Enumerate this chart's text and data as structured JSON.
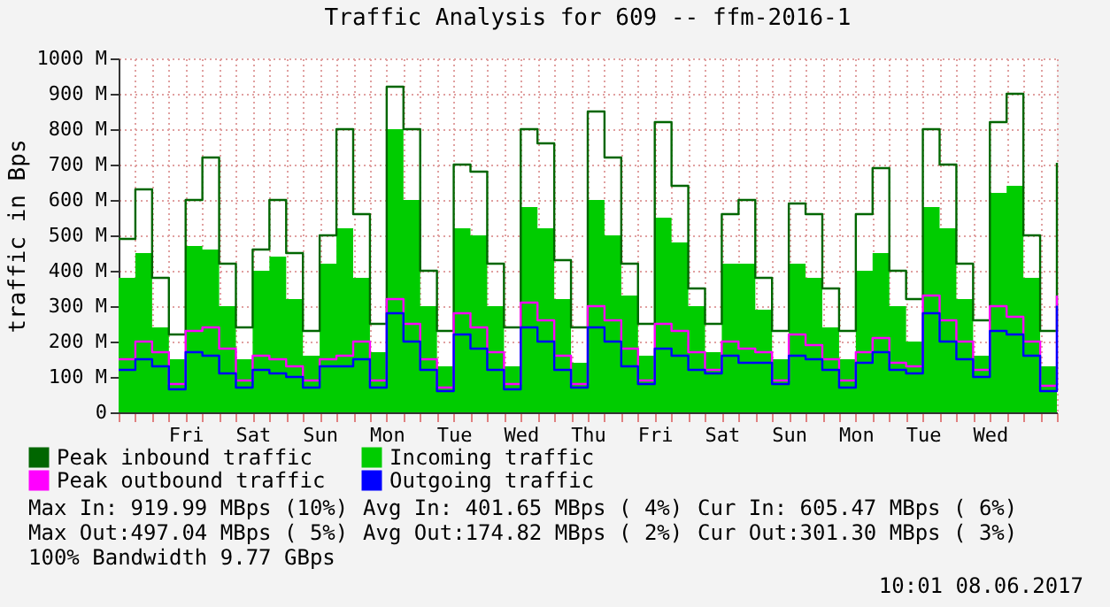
{
  "chart_data": {
    "type": "area",
    "title": "Traffic Analysis for 609 -- ffm-2016-1",
    "ylabel": "traffic in Bps",
    "categories": [
      null,
      null,
      null,
      null,
      "Fri",
      null,
      null,
      null,
      "Sat",
      null,
      null,
      null,
      "Sun",
      null,
      null,
      null,
      "Mon",
      null,
      null,
      null,
      "Tue",
      null,
      null,
      null,
      "Wed",
      null,
      null,
      null,
      "Thu",
      null,
      null,
      null,
      "Fri",
      null,
      null,
      null,
      "Sat",
      null,
      null,
      null,
      "Sun",
      null,
      null,
      null,
      "Mon",
      null,
      null,
      null,
      "Tue",
      null,
      null,
      null,
      "Wed",
      null,
      null,
      null,
      null
    ],
    "series": [
      {
        "name": "Peak inbound traffic",
        "type": "step",
        "color": "#006600",
        "values": [
          490,
          630,
          380,
          220,
          600,
          720,
          420,
          240,
          460,
          600,
          450,
          230,
          500,
          800,
          560,
          250,
          920,
          800,
          400,
          230,
          700,
          680,
          420,
          240,
          800,
          760,
          430,
          240,
          850,
          720,
          420,
          250,
          820,
          640,
          350,
          250,
          560,
          600,
          380,
          230,
          590,
          560,
          350,
          230,
          560,
          690,
          400,
          320,
          800,
          700,
          420,
          260,
          820,
          900,
          500,
          230,
          705
        ]
      },
      {
        "name": "Incoming traffic",
        "color": "#00cc00",
        "values": [
          380,
          450,
          240,
          150,
          470,
          460,
          300,
          150,
          400,
          440,
          320,
          160,
          420,
          520,
          380,
          170,
          800,
          600,
          300,
          130,
          520,
          500,
          300,
          130,
          580,
          520,
          320,
          140,
          600,
          500,
          330,
          160,
          550,
          480,
          300,
          170,
          420,
          420,
          290,
          150,
          420,
          380,
          240,
          150,
          400,
          450,
          300,
          200,
          580,
          520,
          320,
          160,
          620,
          640,
          380,
          130,
          605
        ]
      },
      {
        "name": "Peak outbound traffic",
        "type": "step",
        "color": "#ff00ff",
        "values": [
          150,
          200,
          170,
          80,
          230,
          240,
          180,
          90,
          160,
          150,
          130,
          90,
          150,
          160,
          200,
          90,
          320,
          250,
          150,
          70,
          280,
          240,
          170,
          80,
          310,
          260,
          160,
          80,
          300,
          260,
          180,
          90,
          250,
          230,
          170,
          120,
          200,
          180,
          170,
          90,
          220,
          190,
          150,
          90,
          170,
          210,
          140,
          130,
          330,
          260,
          200,
          120,
          300,
          270,
          200,
          75,
          330
        ]
      },
      {
        "name": "Outgoing traffic",
        "type": "step",
        "color": "#0000ff",
        "values": [
          120,
          150,
          130,
          65,
          170,
          160,
          110,
          70,
          120,
          110,
          100,
          70,
          130,
          130,
          150,
          70,
          280,
          200,
          120,
          60,
          220,
          180,
          120,
          65,
          240,
          200,
          120,
          70,
          240,
          200,
          130,
          80,
          180,
          160,
          120,
          110,
          160,
          140,
          140,
          80,
          160,
          150,
          120,
          70,
          140,
          170,
          120,
          110,
          280,
          200,
          150,
          100,
          230,
          220,
          160,
          60,
          301
        ]
      }
    ],
    "ylim": [
      0,
      1000
    ],
    "yticks": [
      0,
      {
        "value": 100,
        "label": "100 M"
      },
      {
        "value": 200,
        "label": "200 M"
      },
      {
        "value": 300,
        "label": "300 M"
      },
      {
        "value": 400,
        "label": "400 M"
      },
      {
        "value": 500,
        "label": "500 M"
      },
      {
        "value": 600,
        "label": "600 M"
      },
      {
        "value": 700,
        "label": "700 M"
      },
      {
        "value": 800,
        "label": "800 M"
      },
      {
        "value": 900,
        "label": "900 M"
      },
      {
        "value": 1000,
        "label": "1000 M"
      }
    ],
    "grid": true,
    "legend": "bottom",
    "annotations": [
      "Max In: 919.99 MBps (10%)",
      "Avg In: 401.65 MBps ( 4%)",
      "Cur In: 605.47 MBps ( 6%)",
      "Max Out:497.04 MBps ( 5%)",
      "Avg Out:174.82 MBps ( 2%)",
      "Cur Out:301.30 MBps ( 3%)",
      "100% Bandwidth 9.77 GBps",
      "10:01 08.06.2017"
    ]
  }
}
